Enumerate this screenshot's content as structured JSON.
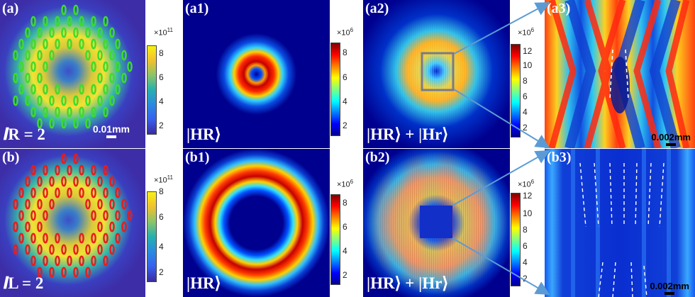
{
  "panels": {
    "a": {
      "label": "(a)",
      "math_label": "𝒍R = 2",
      "scale_bar": "0.01mm"
    },
    "a1": {
      "label": "(a1)",
      "math_label": "|HR⟩"
    },
    "a2": {
      "label": "(a2)",
      "math_label": "|HR⟩ + |Hr⟩"
    },
    "a3": {
      "label": "(a3)",
      "scale_bar": "0.002mm"
    },
    "b": {
      "label": "(b)",
      "math_label": "𝒍L = 2"
    },
    "b1": {
      "label": "(b1)",
      "math_label": "|HR⟩"
    },
    "b2": {
      "label": "(b2)",
      "math_label": "|HR⟩ + |Hr⟩"
    },
    "b3": {
      "label": "(b3)",
      "scale_bar": "0.002mm"
    }
  },
  "colorbars": {
    "a": {
      "exponent": "×10",
      "power": "11",
      "ticks": [
        "8",
        "6",
        "4",
        "2"
      ],
      "colormap": "parula"
    },
    "a1": {
      "exponent": "×10",
      "power": "6",
      "ticks": [
        "8",
        "6",
        "4",
        "2"
      ],
      "colormap": "jet"
    },
    "a2": {
      "exponent": "×10",
      "power": "6",
      "ticks": [
        "12",
        "10",
        "8",
        "6",
        "4",
        "2"
      ],
      "colormap": "jet"
    },
    "b": {
      "exponent": "×10",
      "power": "11",
      "ticks": [
        "8",
        "6",
        "4",
        "2"
      ],
      "colormap": "parula"
    },
    "b1": {
      "exponent": "×10",
      "power": "6",
      "ticks": [
        "8",
        "6",
        "4",
        "2"
      ],
      "colormap": "jet"
    },
    "b2": {
      "exponent": "×10",
      "power": "6",
      "ticks": [
        "12",
        "10",
        "8",
        "6",
        "4",
        "2"
      ],
      "colormap": "jet"
    }
  },
  "colors": {
    "polarization_a": "#3ddc2a",
    "polarization_b": "#e81c1c",
    "zoom_arrows": "#5b9bd5",
    "zoom_box": "#7a7a8a"
  }
}
